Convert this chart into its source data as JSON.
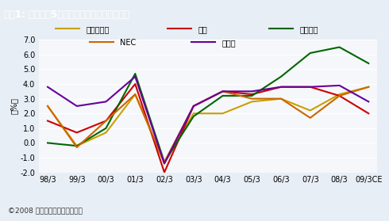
{
  "title": "図表1: 総合電機5社の売上高営業利益率の推移",
  "ylabel": "（%）",
  "copyright": "©2008 スタンダード＆プアーズ",
  "x_labels": [
    "98/3",
    "99/3",
    "00/3",
    "01/3",
    "02/3",
    "03/3",
    "04/3",
    "05/3",
    "06/3",
    "07/3",
    "08/3",
    "09/3CE"
  ],
  "ylim": [
    -2.0,
    7.0
  ],
  "yticks": [
    -2.0,
    -1.0,
    0.0,
    1.0,
    2.0,
    3.0,
    4.0,
    5.0,
    6.0,
    7.0
  ],
  "series": [
    {
      "name": "日立製作所",
      "color": "#c8a000",
      "values": [
        2.5,
        -0.2,
        0.7,
        3.3,
        -1.4,
        2.0,
        2.0,
        2.8,
        3.0,
        2.2,
        3.3,
        3.8
      ]
    },
    {
      "name": "東芝",
      "color": "#cc0000",
      "values": [
        1.5,
        0.7,
        1.5,
        4.0,
        -2.0,
        2.5,
        3.5,
        3.3,
        3.8,
        3.8,
        3.2,
        2.0
      ]
    },
    {
      "name": "三菱電機",
      "color": "#006600",
      "values": [
        0.0,
        -0.2,
        1.0,
        4.7,
        -1.3,
        1.8,
        3.2,
        3.2,
        4.5,
        6.1,
        6.5,
        5.4
      ]
    },
    {
      "name": "NEC",
      "color": "#cc6600",
      "values": [
        2.5,
        -0.3,
        1.5,
        3.3,
        -1.3,
        2.5,
        3.5,
        3.0,
        3.0,
        1.7,
        3.2,
        3.8
      ]
    },
    {
      "name": "富士通",
      "color": "#660099",
      "values": [
        3.8,
        2.5,
        2.8,
        4.5,
        -1.4,
        2.5,
        3.5,
        3.5,
        3.8,
        3.8,
        3.9,
        2.8
      ]
    }
  ],
  "bg_color": "#e8eef5",
  "plot_bg_color": "#f5f7fa",
  "title_bg_color": "#4a6fa5",
  "title_text_color": "#ffffff",
  "legend_row1": [
    "日立製作所",
    "東芝",
    "三菱電機"
  ],
  "legend_row2": [
    "NEC",
    "富士通"
  ]
}
